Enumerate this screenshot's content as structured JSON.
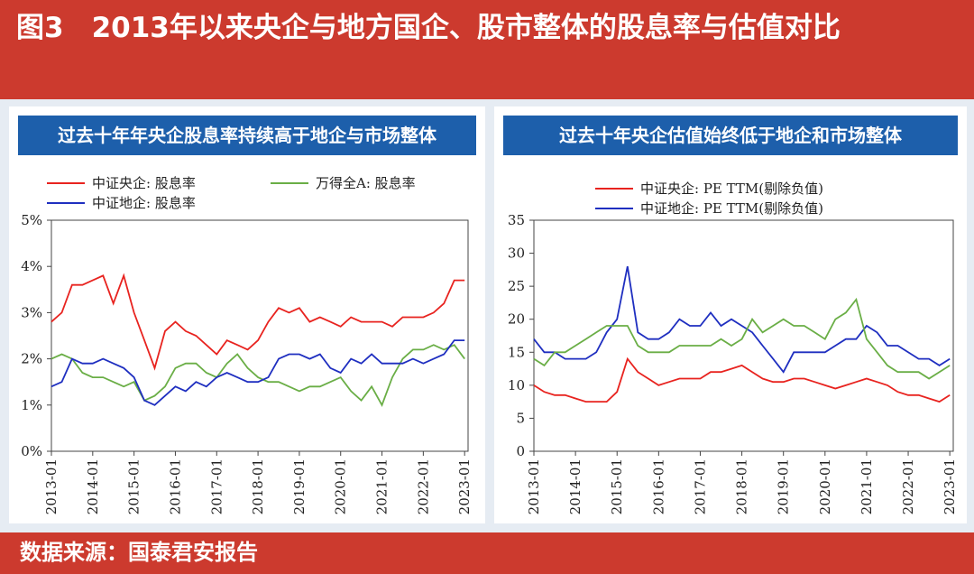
{
  "title": "图3　2013年以来央企与地方国企、股市整体的股息率与估值对比",
  "source": "数据来源：国泰君安报告",
  "chart_data": [
    {
      "type": "line",
      "title": "过去十年年央企股息率持续高于地企与市场整体",
      "x": [
        "2013-01",
        "2013-04",
        "2013-07",
        "2013-10",
        "2014-01",
        "2014-04",
        "2014-07",
        "2014-10",
        "2015-01",
        "2015-04",
        "2015-07",
        "2015-10",
        "2016-01",
        "2016-04",
        "2016-07",
        "2016-10",
        "2017-01",
        "2017-04",
        "2017-07",
        "2017-10",
        "2018-01",
        "2018-04",
        "2018-07",
        "2018-10",
        "2019-01",
        "2019-04",
        "2019-07",
        "2019-10",
        "2020-01",
        "2020-04",
        "2020-07",
        "2020-10",
        "2021-01",
        "2021-04",
        "2021-07",
        "2021-10",
        "2022-01",
        "2022-04",
        "2022-07",
        "2022-10",
        "2023-01"
      ],
      "xlim": [
        "2013-01",
        "2023-02"
      ],
      "xticks": [
        "2013-01",
        "2014-01",
        "2015-01",
        "2016-01",
        "2017-01",
        "2018-01",
        "2019-01",
        "2020-01",
        "2021-01",
        "2022-01",
        "2023-01"
      ],
      "ylim": [
        0,
        5
      ],
      "yticks": [
        {
          "value": 0,
          "label": "0%"
        },
        {
          "value": 1,
          "label": "1%"
        },
        {
          "value": 2,
          "label": "2%"
        },
        {
          "value": 3,
          "label": "3%"
        },
        {
          "value": 4,
          "label": "4%"
        },
        {
          "value": 5,
          "label": "5%"
        }
      ],
      "series": [
        {
          "name": "中证央企: 股息率",
          "color": "#e8231f",
          "values": [
            2.8,
            3.0,
            3.6,
            3.6,
            3.7,
            3.8,
            3.2,
            3.8,
            3.0,
            2.4,
            1.8,
            2.6,
            2.8,
            2.6,
            2.5,
            2.3,
            2.1,
            2.4,
            2.3,
            2.2,
            2.4,
            2.8,
            3.1,
            3.0,
            3.1,
            2.8,
            2.9,
            2.8,
            2.7,
            2.9,
            2.8,
            2.8,
            2.8,
            2.7,
            2.9,
            2.9,
            2.9,
            3.0,
            3.2,
            3.7,
            3.7
          ]
        },
        {
          "name": "万得全A: 股息率",
          "color": "#6aae46",
          "values": [
            2.0,
            2.1,
            2.0,
            1.7,
            1.6,
            1.6,
            1.5,
            1.4,
            1.5,
            1.1,
            1.2,
            1.4,
            1.8,
            1.9,
            1.9,
            1.7,
            1.6,
            1.9,
            2.1,
            1.8,
            1.6,
            1.5,
            1.5,
            1.4,
            1.3,
            1.4,
            1.4,
            1.5,
            1.6,
            1.3,
            1.1,
            1.4,
            1.0,
            1.6,
            2.0,
            2.2,
            2.2,
            2.3,
            2.2,
            2.3,
            2.0
          ]
        },
        {
          "name": "中证地企: 股息率",
          "color": "#1f2fc0",
          "values": [
            1.4,
            1.5,
            2.0,
            1.9,
            1.9,
            2.0,
            1.9,
            1.8,
            1.6,
            1.1,
            1.0,
            1.2,
            1.4,
            1.3,
            1.5,
            1.4,
            1.6,
            1.7,
            1.6,
            1.5,
            1.5,
            1.6,
            2.0,
            2.1,
            2.1,
            2.0,
            2.1,
            1.8,
            1.7,
            2.0,
            1.9,
            2.1,
            1.9,
            1.9,
            1.9,
            2.0,
            1.9,
            2.0,
            2.1,
            2.4,
            2.4
          ]
        }
      ]
    },
    {
      "type": "line",
      "title": "过去十年央企估值始终低于地企和市场整体",
      "x": [
        "2013-01",
        "2013-04",
        "2013-07",
        "2013-10",
        "2014-01",
        "2014-04",
        "2014-07",
        "2014-10",
        "2015-01",
        "2015-04",
        "2015-07",
        "2015-10",
        "2016-01",
        "2016-04",
        "2016-07",
        "2016-10",
        "2017-01",
        "2017-04",
        "2017-07",
        "2017-10",
        "2018-01",
        "2018-04",
        "2018-07",
        "2018-10",
        "2019-01",
        "2019-04",
        "2019-07",
        "2019-10",
        "2020-01",
        "2020-04",
        "2020-07",
        "2020-10",
        "2021-01",
        "2021-04",
        "2021-07",
        "2021-10",
        "2022-01",
        "2022-04",
        "2022-07",
        "2022-10",
        "2023-01"
      ],
      "xlim": [
        "2013-01",
        "2023-02"
      ],
      "xticks": [
        "2013-01",
        "2014-01",
        "2015-01",
        "2016-01",
        "2017-01",
        "2018-01",
        "2019-01",
        "2020-01",
        "2021-01",
        "2022-01",
        "2023-01"
      ],
      "ylim": [
        0,
        35
      ],
      "yticks": [
        0,
        5,
        10,
        15,
        20,
        25,
        30,
        35
      ],
      "series": [
        {
          "name": "中证央企: PE TTM(剔除负值)",
          "color": "#e8231f",
          "values": [
            10,
            9,
            8.5,
            8.5,
            8,
            7.5,
            7.5,
            7.5,
            9,
            14,
            12,
            11,
            10,
            10.5,
            11,
            11,
            11,
            12,
            12,
            12.5,
            13,
            12,
            11,
            10.5,
            10.5,
            11,
            11,
            10.5,
            10,
            9.5,
            10,
            10.5,
            11,
            10.5,
            10,
            9,
            8.5,
            8.5,
            8,
            7.5,
            8.5
          ]
        },
        {
          "name": "中证地企: PE TTM(剔除负值)",
          "color": "#1f2fc0",
          "values": [
            17,
            15,
            15,
            14,
            14,
            14,
            15,
            18,
            20,
            28,
            18,
            17,
            17,
            18,
            20,
            19,
            19,
            21,
            19,
            20,
            19,
            18,
            16,
            14,
            12,
            15,
            15,
            15,
            15,
            16,
            17,
            17,
            19,
            18,
            16,
            16,
            15,
            14,
            14,
            13,
            14
          ]
        },
        {
          "color": "#6aae46",
          "values": [
            14,
            13,
            15,
            15,
            16,
            17,
            18,
            19,
            19,
            19,
            16,
            15,
            15,
            15,
            16,
            16,
            16,
            16,
            17,
            16,
            17,
            20,
            18,
            19,
            20,
            19,
            19,
            18,
            17,
            20,
            21,
            23,
            17,
            15,
            13,
            12,
            12,
            12,
            11,
            12,
            13
          ]
        }
      ]
    }
  ]
}
